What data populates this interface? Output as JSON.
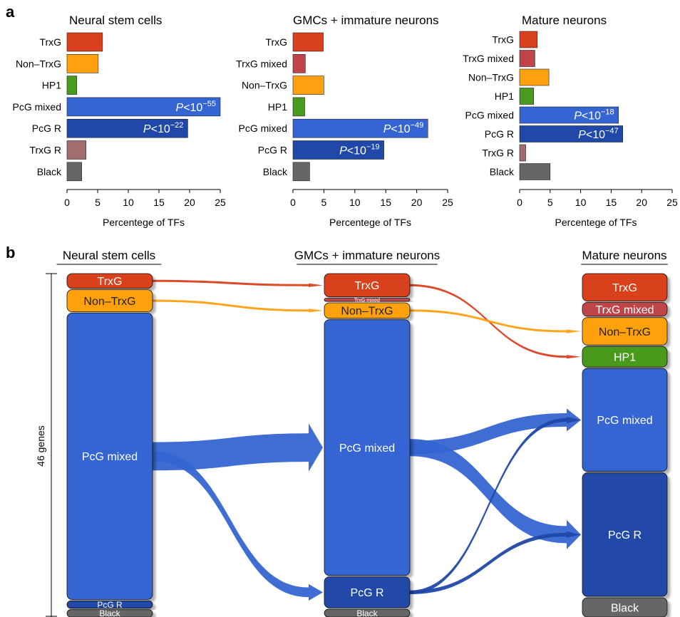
{
  "panel_labels": {
    "a": "a",
    "b": "b"
  },
  "colors": {
    "TrxG": "#d9411e",
    "TrxG mixed": "#c0444a",
    "Non–TrxG": "#ffa010",
    "HP1": "#4a9a1f",
    "PcG mixed": "#3565d2",
    "PcG R": "#2048a8",
    "TrxG R": "#a36d6d",
    "Black": "#666666"
  },
  "chart_data": [
    {
      "type": "bar",
      "orientation": "horizontal",
      "title": "Neural stem cells",
      "xlabel": "Percentege of TFs",
      "xlim": [
        0,
        25
      ],
      "xticks": [
        0,
        5,
        10,
        15,
        20,
        25
      ],
      "categories": [
        "TrxG",
        "Non–TrxG",
        "HP1",
        "PcG mixed",
        "PcG R",
        "TrxG R",
        "Black"
      ],
      "values": [
        5.8,
        5.1,
        1.6,
        25.0,
        19.7,
        3.1,
        2.4
      ],
      "annotations": [
        {
          "category": "PcG mixed",
          "base": "P<10",
          "exp": "−55"
        },
        {
          "category": "PcG R",
          "base": "P<10",
          "exp": "−22"
        }
      ]
    },
    {
      "type": "bar",
      "orientation": "horizontal",
      "title": "GMCs + immature neurons",
      "xlabel": "Percentege of TFs",
      "xlim": [
        0,
        25
      ],
      "xticks": [
        0,
        5,
        10,
        15,
        20,
        25
      ],
      "categories": [
        "TrxG",
        "TrxG mixed",
        "Non–TrxG",
        "HP1",
        "PcG mixed",
        "PcG R",
        "Black"
      ],
      "values": [
        4.9,
        2.0,
        5.0,
        1.9,
        21.8,
        14.7,
        2.7
      ],
      "annotations": [
        {
          "category": "PcG mixed",
          "base": "P<10",
          "exp": "−49"
        },
        {
          "category": "PcG R",
          "base": "P<10",
          "exp": "−19"
        }
      ]
    },
    {
      "type": "bar",
      "orientation": "horizontal",
      "title": "Mature neurons",
      "xlabel": "Percentege of TFs",
      "xlim": [
        0,
        25
      ],
      "xticks": [
        0,
        5,
        10,
        15,
        20,
        25
      ],
      "categories": [
        "TrxG",
        "TrxG mixed",
        "Non–TrxG",
        "HP1",
        "PcG mixed",
        "PcG R",
        "TrxG R",
        "Black"
      ],
      "values": [
        2.9,
        2.5,
        4.8,
        2.3,
        16.2,
        16.9,
        1.0,
        5.0
      ],
      "annotations": [
        {
          "category": "PcG mixed",
          "base": "P<10",
          "exp": "−18"
        },
        {
          "category": "PcG R",
          "base": "P<10",
          "exp": "−47"
        }
      ]
    },
    {
      "type": "sankey",
      "total_label": "46 genes",
      "stages": [
        {
          "title": "Neural stem cells",
          "nodes": [
            {
              "name": "TrxG",
              "label": "TrxG",
              "count": 2
            },
            {
              "name": "Non–TrxG",
              "label": "Non–TrxG",
              "count": 3
            },
            {
              "name": "PcG mixed",
              "label": "PcG mixed",
              "count": 39
            },
            {
              "name": "PcG R",
              "label": "PcG R",
              "count": 1
            },
            {
              "name": "Black",
              "label": "Black",
              "count": 1
            }
          ]
        },
        {
          "title": "GMCs + immature neurons",
          "nodes": [
            {
              "name": "TrxG",
              "label": "TrxG",
              "count": 3
            },
            {
              "name": "TrxG mixed",
              "label": "TrxG mixed",
              "count": 0.4
            },
            {
              "name": "Non–TrxG",
              "label": "Non–TrxG",
              "count": 2
            },
            {
              "name": "PcG mixed",
              "label": "PcG mixed",
              "count": 33
            },
            {
              "name": "PcG R",
              "label": "PcG R",
              "count": 4
            },
            {
              "name": "Black",
              "label": "Black",
              "count": 1
            }
          ]
        },
        {
          "title": "Mature neurons",
          "nodes": [
            {
              "name": "TrxG",
              "label": "TrxG",
              "count": 2
            },
            {
              "name": "TrxG mixed",
              "label": "TrxG mixed",
              "count": 1
            },
            {
              "name": "Non–TrxG",
              "label": "Non–TrxG",
              "count": 2
            },
            {
              "name": "HP1",
              "label": "HP1",
              "count": 1.5
            },
            {
              "name": "PcG mixed",
              "label": "PcG mixed",
              "count": 7.5
            },
            {
              "name": "PcG R",
              "label": "PcG R",
              "count": 9
            },
            {
              "name": "Black",
              "label": "Black",
              "count": 1.4
            }
          ]
        }
      ],
      "flows": [
        {
          "from_stage": 0,
          "from": "TrxG",
          "to": "TrxG",
          "value": 0.25
        },
        {
          "from_stage": 0,
          "from": "Non–TrxG",
          "to": "Non–TrxG",
          "value": 0.25
        },
        {
          "from_stage": 0,
          "from": "PcG mixed",
          "to": "PcG mixed",
          "value": 3.8
        },
        {
          "from_stage": 0,
          "from": "PcG mixed",
          "to": "PcG R",
          "value": 1.3
        },
        {
          "from_stage": 1,
          "from": "TrxG",
          "to": "HP1",
          "value": 0.25
        },
        {
          "from_stage": 1,
          "from": "Non–TrxG",
          "to": "Non–TrxG",
          "value": 0.25
        },
        {
          "from_stage": 1,
          "from": "PcG mixed",
          "to": "PcG mixed",
          "value": 1.8
        },
        {
          "from_stage": 1,
          "from": "PcG mixed",
          "to": "PcG R",
          "value": 2.3
        },
        {
          "from_stage": 1,
          "from": "PcG R",
          "to": "PcG mixed",
          "value": 0.5
        },
        {
          "from_stage": 1,
          "from": "PcG R",
          "to": "PcG R",
          "value": 0.5
        }
      ]
    }
  ]
}
